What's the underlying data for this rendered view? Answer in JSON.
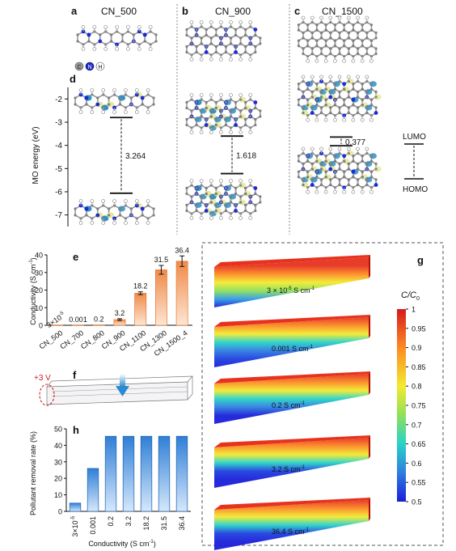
{
  "panels": {
    "a": {
      "letter": "a",
      "title": "CN_500"
    },
    "b": {
      "letter": "b",
      "title": "CN_900"
    },
    "c": {
      "letter": "c",
      "title": "CN_1500"
    },
    "d": {
      "letter": "d"
    },
    "e": {
      "letter": "e"
    },
    "f": {
      "letter": "f",
      "voltage": "+3 V"
    },
    "g": {
      "letter": "g"
    },
    "h": {
      "letter": "h"
    }
  },
  "atom_legend": [
    "C",
    "N",
    "H"
  ],
  "colors": {
    "carbon": "#8c8c8c",
    "nitrogen": "#1a2ad6",
    "hydrogen": "#ffffff",
    "orbital_blue": "#2f8fc4",
    "orbital_yellow": "#ecec9c",
    "bar_orange": "#f29a5e",
    "bar_blue": "#4a8fd8"
  },
  "chart_data": [
    {
      "panel": "d",
      "type": "line",
      "ylabel": "MO energy (eV)",
      "ylim": [
        -7.5,
        -1.5
      ],
      "yticks": [
        "-2",
        "-3",
        "-4",
        "-5",
        "-6",
        "-7"
      ],
      "ytick_values": [
        -2,
        -3,
        -4,
        -5,
        -6,
        -7
      ],
      "series": [
        {
          "name": "CN_500",
          "lumo": -2.8,
          "homo": -6.064,
          "gap": "3.264"
        },
        {
          "name": "CN_900",
          "lumo": -3.6,
          "homo": -5.218,
          "gap": "1.618"
        },
        {
          "name": "CN_1500",
          "lumo": -3.64,
          "homo": -4.017,
          "gap": "0.377"
        }
      ],
      "legend": [
        "LUMO",
        "HOMO"
      ]
    },
    {
      "panel": "e",
      "type": "bar",
      "ylabel": "Conductivity (S cm",
      "ylabel_sup": "-1",
      "ylabel_end": ")",
      "ylim": [
        0,
        40
      ],
      "yticks": [
        "0",
        "10",
        "20",
        "30",
        "40"
      ],
      "ytick_values": [
        0,
        10,
        20,
        30,
        40
      ],
      "categories": [
        "CN_500",
        "CN_700",
        "CN_800",
        "CN_900",
        "CN_1100",
        "CN_1300",
        "CN_1500_4"
      ],
      "values": [
        3e-05,
        0.001,
        0.2,
        3.2,
        18.2,
        31.5,
        36.4
      ],
      "errors": [
        0,
        0,
        0,
        0.5,
        0.8,
        2.5,
        3.0
      ],
      "data_labels": [
        "3×10",
        "0.001",
        "0.2",
        "3.2",
        "18.2",
        "31.5",
        "36.4"
      ],
      "data_label_sup": [
        "-5",
        "",
        "",
        "",
        "",
        "",
        ""
      ]
    },
    {
      "panel": "h",
      "type": "bar",
      "ylabel": "Pollutant removal rate (%)",
      "xlabel": "Conductivity (S cm",
      "xlabel_sup": "-1",
      "xlabel_end": ")",
      "ylim": [
        0,
        50
      ],
      "yticks": [
        "0",
        "10",
        "20",
        "30",
        "40",
        "50"
      ],
      "ytick_values": [
        0,
        10,
        20,
        30,
        40,
        50
      ],
      "categories": [
        "3×10",
        "0.001",
        "0.2",
        "3.2",
        "18.2",
        "31.5",
        "36.4"
      ],
      "category_sup": [
        "-5",
        "",
        "",
        "",
        "",
        "",
        ""
      ],
      "values": [
        5,
        26,
        45.5,
        45.5,
        45.5,
        45.5,
        45.5
      ]
    },
    {
      "panel": "g",
      "type": "heatmap",
      "colorbar_title": "C/C",
      "colorbar_title_sub": "0",
      "colorbar_range": [
        0.5,
        1
      ],
      "colorbar_ticks": [
        "1",
        "0.95",
        "0.9",
        "0.85",
        "0.8",
        "0.75",
        "0.7",
        "0.65",
        "0.6",
        "0.55",
        "0.5"
      ],
      "colorbar_tick_values": [
        1,
        0.95,
        0.9,
        0.85,
        0.8,
        0.75,
        0.7,
        0.65,
        0.6,
        0.55,
        0.5
      ],
      "slabs": [
        {
          "label": "3 × 10",
          "sup": "-5",
          "unit": " S cm",
          "unit_sup": "-1"
        },
        {
          "label": "0.001 S cm",
          "sup": "",
          "unit": "",
          "unit_sup": "-1"
        },
        {
          "label": "0.2 S cm",
          "sup": "",
          "unit": "",
          "unit_sup": "-1"
        },
        {
          "label": "3.2 S cm",
          "sup": "",
          "unit": "",
          "unit_sup": "-1"
        },
        {
          "label": "36.4 S cm",
          "sup": "",
          "unit": "",
          "unit_sup": "-1"
        }
      ]
    }
  ]
}
